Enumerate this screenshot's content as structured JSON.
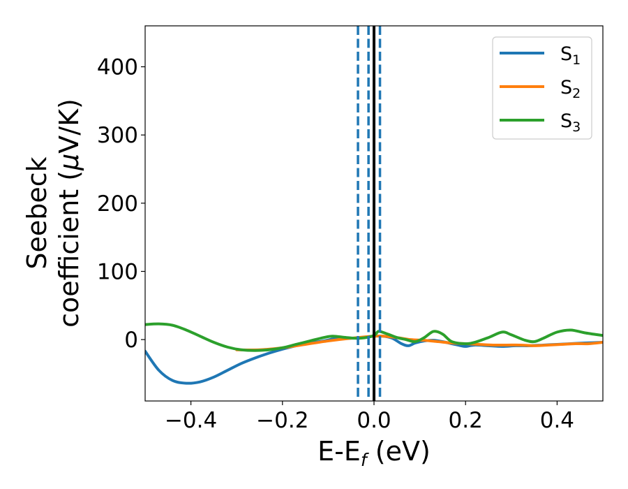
{
  "chart_data": {
    "type": "line",
    "xlabel": "E-E$_f$ (eV)",
    "xlabel_parts": {
      "main": "E-E",
      "sub": "f",
      "tail": " (eV)"
    },
    "ylabel_line1": "Seebeck",
    "ylabel_line2_prefix": "coefficient  (",
    "ylabel_mu": "μ",
    "ylabel_line2_suffix": "V/K)",
    "xlim": [
      -0.5,
      0.5
    ],
    "ylim": [
      -90,
      460
    ],
    "x_ticks": [
      -0.4,
      -0.2,
      0.0,
      0.2,
      0.4
    ],
    "x_tick_labels": [
      "−0.4",
      "−0.2",
      "0.0",
      "0.2",
      "0.4"
    ],
    "y_ticks": [
      0,
      100,
      200,
      300,
      400
    ],
    "y_tick_labels": [
      "0",
      "100",
      "200",
      "300",
      "400"
    ],
    "grid": false,
    "legend_position": "top-right",
    "series": [
      {
        "name": "S1",
        "label_main": "S",
        "label_sub": "1",
        "color": "#1f77b4",
        "x": [
          -0.5,
          -0.47,
          -0.44,
          -0.41,
          -0.38,
          -0.35,
          -0.32,
          -0.29,
          -0.26,
          -0.23,
          -0.2,
          -0.17,
          -0.14,
          -0.11,
          -0.08,
          -0.05,
          -0.02,
          0.0,
          0.02,
          0.04,
          0.06,
          0.075,
          0.09,
          0.11,
          0.13,
          0.15,
          0.17,
          0.19,
          0.2,
          0.22,
          0.25,
          0.28,
          0.31,
          0.34,
          0.37,
          0.4,
          0.43,
          0.46,
          0.5
        ],
        "y": [
          -17,
          -45,
          -60,
          -64,
          -62,
          -55,
          -45,
          -35,
          -27,
          -20,
          -14,
          -9,
          -5,
          -2,
          2,
          2,
          3,
          5,
          5,
          2,
          -6,
          -9,
          -5,
          -2,
          -1,
          -3,
          -6,
          -9,
          -10,
          -8,
          -9,
          -10,
          -9,
          -9,
          -8,
          -7,
          -6,
          -5,
          -4
        ]
      },
      {
        "name": "S2",
        "label_main": "S",
        "label_sub": "2",
        "color": "#ff7f0e",
        "x": [
          -0.3,
          -0.25,
          -0.2,
          -0.15,
          -0.1,
          -0.05,
          0.0,
          0.02,
          0.05,
          0.08,
          0.11,
          0.14,
          0.17,
          0.2,
          0.23,
          0.26,
          0.29,
          0.32,
          0.35,
          0.38,
          0.41,
          0.44,
          0.47,
          0.5
        ],
        "y": [
          -15,
          -15,
          -12,
          -7,
          -2,
          2,
          5,
          5,
          3,
          0,
          -1,
          -3,
          -5,
          -6,
          -7,
          -8,
          -8,
          -8,
          -9,
          -8,
          -7,
          -6,
          -6,
          -4
        ]
      },
      {
        "name": "S3",
        "label_main": "S",
        "label_sub": "3",
        "color": "#2ca02c",
        "x": [
          -0.5,
          -0.47,
          -0.44,
          -0.41,
          -0.38,
          -0.35,
          -0.32,
          -0.29,
          -0.26,
          -0.23,
          -0.2,
          -0.17,
          -0.14,
          -0.11,
          -0.09,
          -0.06,
          -0.03,
          0.0,
          0.01,
          0.03,
          0.05,
          0.07,
          0.09,
          0.11,
          0.13,
          0.15,
          0.17,
          0.2,
          0.22,
          0.25,
          0.28,
          0.3,
          0.33,
          0.35,
          0.37,
          0.4,
          0.43,
          0.46,
          0.5
        ],
        "y": [
          22,
          23,
          21,
          14,
          5,
          -4,
          -11,
          -15,
          -16,
          -15,
          -12,
          -7,
          -2,
          3,
          5,
          3,
          2,
          6,
          12,
          8,
          3,
          0,
          -3,
          3,
          12,
          8,
          -3,
          -6,
          -4,
          3,
          11,
          7,
          -1,
          -3,
          2,
          11,
          14,
          10,
          6
        ]
      }
    ],
    "vertical_lines": [
      {
        "x": -0.035,
        "style": "dashed",
        "color": "#1f77b4"
      },
      {
        "x": -0.012,
        "style": "dashed",
        "color": "#1f77b4"
      },
      {
        "x": 0.013,
        "style": "dashed",
        "color": "#1f77b4"
      },
      {
        "x": 0.0,
        "style": "solid",
        "color": "#000000"
      }
    ]
  }
}
